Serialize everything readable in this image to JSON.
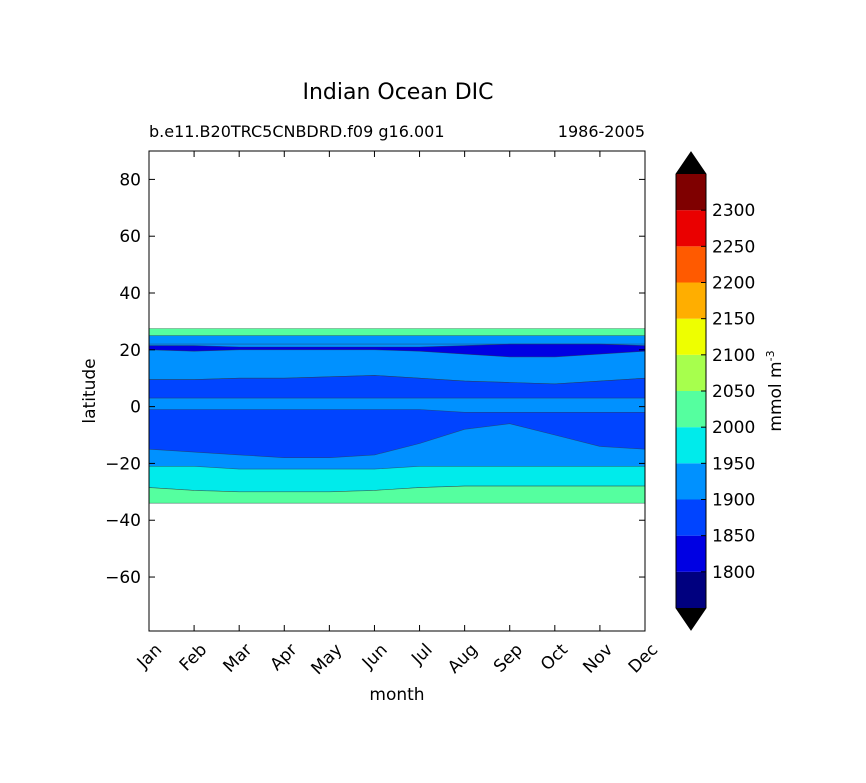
{
  "chart_data": {
    "type": "contourf",
    "title": "Indian Ocean DIC",
    "subtitle_left": "b.e11.B20TRC5CNBDRD.f09 g16.001",
    "subtitle_right": "1986-2005",
    "xlabel": "month",
    "ylabel": "latitude",
    "x_categories": [
      "Jan",
      "Feb",
      "Mar",
      "Apr",
      "May",
      "Jun",
      "Jul",
      "Aug",
      "Sep",
      "Oct",
      "Nov",
      "Dec"
    ],
    "xlim": [
      0,
      11
    ],
    "ylim": [
      -79,
      90
    ],
    "yticks": [
      80,
      60,
      40,
      20,
      0,
      -20,
      -40,
      -60
    ],
    "ytick_labels": [
      "80",
      "60",
      "40",
      "20",
      "0",
      "−20",
      "−40",
      "−60"
    ],
    "colorbar": {
      "label": "mmol m",
      "label_superscript": "-3",
      "extend": "both",
      "levels": [
        1750,
        1800,
        1850,
        1900,
        1950,
        2000,
        2050,
        2100,
        2150,
        2200,
        2250,
        2300,
        2350
      ],
      "tick_labels": [
        "1800",
        "1850",
        "1900",
        "1950",
        "2000",
        "2050",
        "2100",
        "2150",
        "2200",
        "2250",
        "2300"
      ],
      "colors": [
        "#00007f",
        "#0000e3",
        "#0044ff",
        "#0091ff",
        "#00ebeb",
        "#55ff9f",
        "#a7ff4d",
        "#eeff00",
        "#ffae00",
        "#ff5a00",
        "#ea0000",
        "#7f0000"
      ],
      "under_color": "#000000",
      "over_color": "#000000"
    },
    "regions": [
      {
        "level_bin": "2000-2050",
        "lat_top": [
          27.5,
          27.5,
          27.5,
          27.5,
          27.5,
          27.5,
          27.5,
          27.5,
          27.5,
          27.5,
          27.5,
          27.5
        ],
        "lat_bottom": [
          25,
          25,
          25,
          25,
          25,
          25,
          25,
          25,
          25,
          25,
          25,
          25
        ]
      },
      {
        "level_bin": "1900-1950",
        "lat_top": [
          22,
          22,
          22,
          22,
          22,
          22,
          22,
          22,
          22,
          22,
          22,
          22
        ],
        "lat_bottom": [
          9.5,
          9.5,
          10,
          10,
          10.5,
          11,
          10,
          9,
          8.5,
          8,
          9,
          10
        ]
      },
      {
        "level_bin": "1850-1900",
        "lat_top": [
          9.5,
          9.5,
          10,
          10,
          10.5,
          11,
          10,
          9,
          8.5,
          8,
          9,
          10
        ],
        "lat_bottom": [
          3,
          3,
          3,
          3,
          3,
          3,
          3,
          3,
          3,
          3,
          3,
          3
        ]
      },
      {
        "level_bin": "1850-1900",
        "lat_top": [
          -1,
          -1,
          -1,
          -1,
          -1,
          -1,
          -1,
          -2,
          -2,
          -2,
          -2,
          -2
        ],
        "lat_bottom": [
          -15,
          -16,
          -17,
          -18,
          -18,
          -17,
          -13,
          -8,
          -6,
          -10,
          -14,
          -15
        ]
      },
      {
        "level_bin": "1950-2000",
        "lat_top": [
          -21,
          -21,
          -22,
          -22,
          -22,
          -22,
          -21,
          -21,
          -21,
          -21,
          -21,
          -21
        ],
        "lat_bottom": [
          -28.5,
          -29.5,
          -30,
          -30,
          -30,
          -29.5,
          -28.5,
          -28,
          -28,
          -28,
          -28,
          -28
        ]
      },
      {
        "level_bin": "2000-2050",
        "lat_top": [
          -28.5,
          -29.5,
          -30,
          -30,
          -30,
          -29.5,
          -28.5,
          -28,
          -28,
          -28,
          -28,
          -28
        ],
        "lat_bottom": [
          -34,
          -34,
          -34,
          -34,
          -34,
          -34,
          -34,
          -34,
          -34,
          -34,
          -34,
          -34
        ]
      },
      {
        "level_bin": "1800-1850",
        "lat_top": [
          21.5,
          21.5,
          21,
          21,
          21,
          21,
          21,
          21.5,
          22,
          22,
          22,
          21.5
        ],
        "lat_bottom": [
          20,
          19.5,
          20,
          20,
          20,
          20,
          19.5,
          18.5,
          17.5,
          17.5,
          18.5,
          19.5
        ]
      }
    ],
    "ocean_band": {
      "lat_top": 27.5,
      "lat_bottom": -34,
      "base_level_bin": "1900-1950"
    }
  }
}
